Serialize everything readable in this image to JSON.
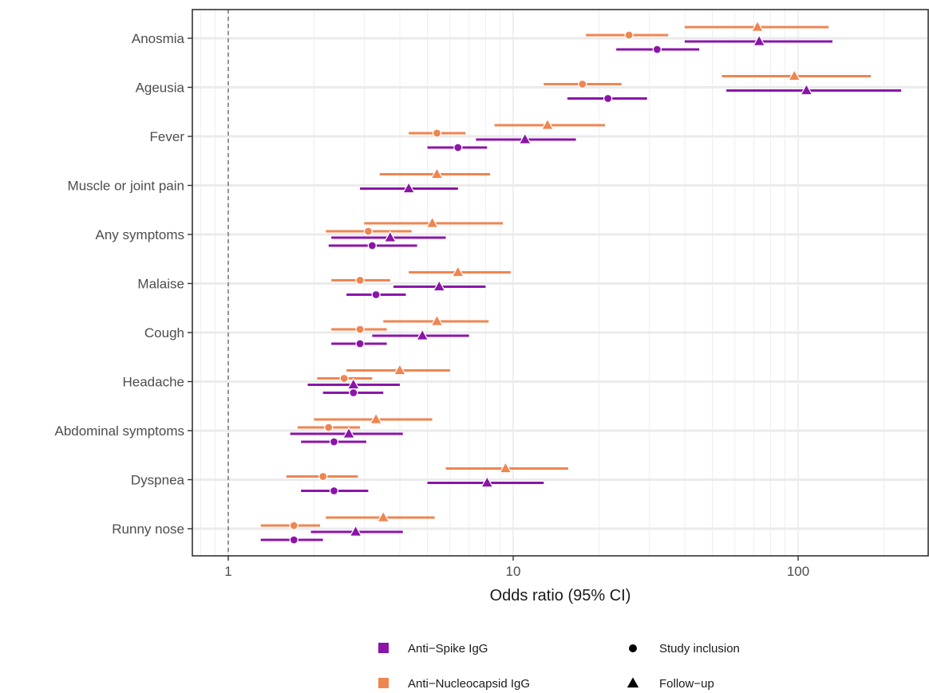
{
  "chart_data": {
    "type": "forest",
    "xlabel": "Odds ratio (95% CI)",
    "x_scale": "log",
    "xlim": [
      0.8,
      230
    ],
    "x_ticks": [
      1,
      10,
      100
    ],
    "x_tick_labels": [
      "1",
      "10",
      "100"
    ],
    "reference_line": 1,
    "grid": true,
    "legend_position": "bottom",
    "categories": [
      "Anosmia",
      "Ageusia",
      "Fever",
      "Muscle or joint pain",
      "Any symptoms",
      "Malaise",
      "Cough",
      "Headache",
      "Abdominal symptoms",
      "Dyspnea",
      "Runny nose"
    ],
    "antibody_legend": [
      {
        "key": "spike",
        "label": "Anti−Spike IgG",
        "color": "#8B15A8"
      },
      {
        "key": "nucleo",
        "label": "Anti−Nucleocapsid IgG",
        "color": "#EE8650"
      }
    ],
    "timepoint_legend": [
      {
        "key": "inclusion",
        "label": "Study inclusion",
        "shape": "circle"
      },
      {
        "key": "followup",
        "label": "Follow−up",
        "shape": "triangle"
      }
    ],
    "series": [
      {
        "antibody": "nucleo",
        "timepoint": "followup",
        "values": [
          72,
          97,
          13.2,
          5.4,
          5.2,
          6.4,
          5.4,
          4.0,
          3.3,
          9.4,
          3.5
        ],
        "ci_low": [
          40,
          54,
          8.6,
          3.4,
          3.0,
          4.3,
          3.5,
          2.6,
          2.0,
          5.8,
          2.2
        ],
        "ci_high": [
          128,
          180,
          21,
          8.3,
          9.2,
          9.8,
          8.2,
          6.0,
          5.2,
          15.6,
          5.3
        ]
      },
      {
        "antibody": "nucleo",
        "timepoint": "inclusion",
        "values": [
          25.5,
          17.5,
          5.4,
          null,
          3.1,
          2.9,
          2.9,
          2.55,
          2.25,
          2.15,
          1.7
        ],
        "ci_low": [
          18,
          12.8,
          4.3,
          null,
          2.2,
          2.3,
          2.3,
          2.05,
          1.75,
          1.6,
          1.3
        ],
        "ci_high": [
          35,
          24,
          6.8,
          null,
          4.4,
          3.7,
          3.6,
          3.2,
          2.9,
          2.85,
          2.1
        ]
      },
      {
        "antibody": "spike",
        "timepoint": "followup",
        "values": [
          73,
          107,
          11,
          4.3,
          3.7,
          5.5,
          4.8,
          2.75,
          2.65,
          8.1,
          2.8
        ],
        "ci_low": [
          40,
          56,
          7.4,
          2.9,
          2.3,
          3.8,
          3.2,
          1.9,
          1.65,
          5.0,
          1.95
        ],
        "ci_high": [
          132,
          230,
          16.6,
          6.4,
          5.8,
          8.0,
          7.0,
          4.0,
          4.1,
          12.8,
          4.1
        ]
      },
      {
        "antibody": "spike",
        "timepoint": "inclusion",
        "values": [
          32,
          21.5,
          6.4,
          null,
          3.2,
          3.3,
          2.9,
          2.75,
          2.35,
          2.35,
          1.7
        ],
        "ci_low": [
          23,
          15.5,
          5.0,
          null,
          2.25,
          2.6,
          2.3,
          2.15,
          1.8,
          1.8,
          1.3
        ],
        "ci_high": [
          45,
          29.5,
          8.1,
          null,
          4.6,
          4.2,
          3.6,
          3.5,
          3.05,
          3.1,
          2.15
        ]
      }
    ]
  }
}
